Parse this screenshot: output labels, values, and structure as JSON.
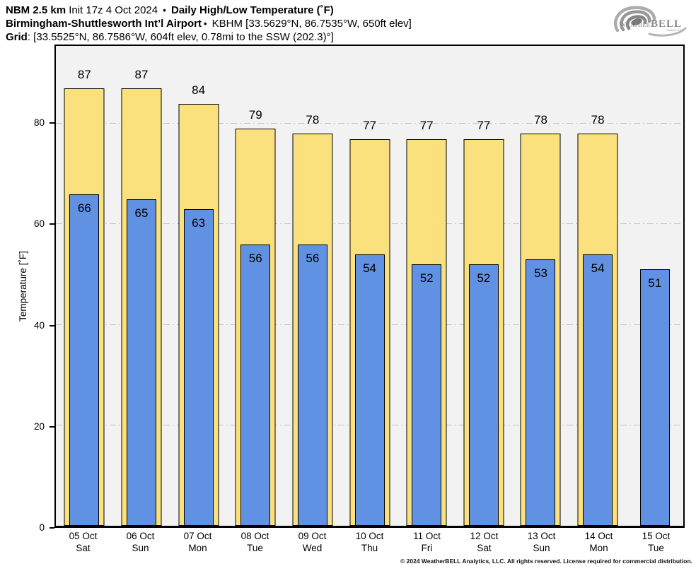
{
  "header": {
    "line1": {
      "model": "NBM 2.5 km",
      "init": " Init 17z 4 Oct 2024 ",
      "sep": "•",
      "title": " Daily High/Low Temperature (˚F)"
    },
    "line2": {
      "station": "Birmingham-Shuttlesworth Int’l Airport",
      "sep": "•",
      "details": " KBHM [33.5629°N, 86.7535°W, 650ft elev]"
    },
    "line3": {
      "label": "Grid",
      "details": ": [33.5525°N, 86.7586°W, 604ft elev, 0.78mi to the SSW (202.3)°]"
    }
  },
  "logo": {
    "brand_weather": "Weather",
    "brand_bell": "BELL",
    "sub": "Analytics LLC"
  },
  "chart_data": {
    "type": "bar",
    "title": "Daily High/Low Temperature (°F)",
    "categories": [
      {
        "date": "05 Oct",
        "day": "Sat"
      },
      {
        "date": "06 Oct",
        "day": "Sun"
      },
      {
        "date": "07 Oct",
        "day": "Mon"
      },
      {
        "date": "08 Oct",
        "day": "Tue"
      },
      {
        "date": "09 Oct",
        "day": "Wed"
      },
      {
        "date": "10 Oct",
        "day": "Thu"
      },
      {
        "date": "11 Oct",
        "day": "Fri"
      },
      {
        "date": "12 Oct",
        "day": "Sat"
      },
      {
        "date": "13 Oct",
        "day": "Sun"
      },
      {
        "date": "14 Oct",
        "day": "Mon"
      },
      {
        "date": "15 Oct",
        "day": "Tue"
      }
    ],
    "series": [
      {
        "name": "High",
        "color": "#FBE17E",
        "values": [
          87,
          87,
          84,
          79,
          78,
          77,
          77,
          77,
          78,
          78,
          null
        ]
      },
      {
        "name": "Low",
        "color": "#6191E2",
        "values": [
          66,
          65,
          63,
          56,
          56,
          54,
          52,
          52,
          53,
          54,
          51
        ]
      }
    ],
    "xlabel": "",
    "ylabel": "Temperature [˚F]",
    "yticks": [
      0,
      20,
      40,
      60,
      80
    ],
    "ylim": [
      0,
      95.5
    ],
    "grid": "horizontal dash-dot at 20/40/60/80",
    "legend": "none",
    "plot_bg": "#f2f2f2",
    "gridline_color": "#c4c4c4",
    "bar_border_color": "#000000"
  },
  "footer": {
    "copyright": "© 2024 WeatherBELL Analytics, LLC. All rights reserved. License required for commercial distribution."
  }
}
